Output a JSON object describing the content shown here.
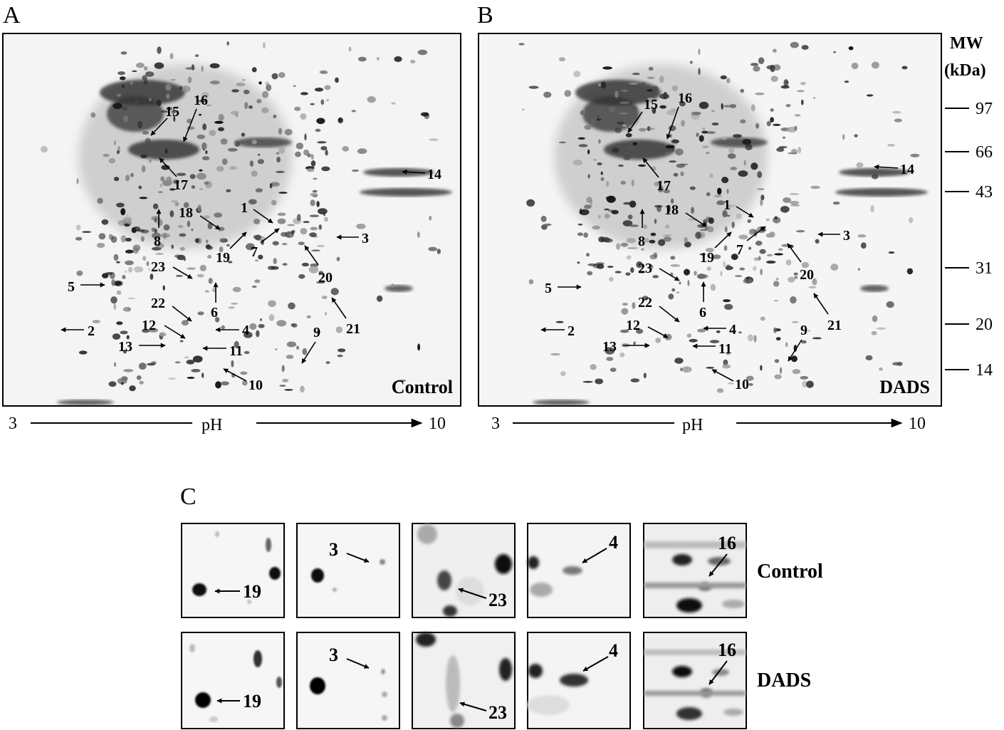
{
  "panels": {
    "A": {
      "letter": "A",
      "condition": "Control"
    },
    "B": {
      "letter": "B",
      "condition": "DADS"
    },
    "C": {
      "letter": "C",
      "row_labels": [
        "Control",
        "DADS"
      ]
    }
  },
  "ph_axis": {
    "start": "3",
    "label": "pH",
    "end": "10"
  },
  "mw_axis": {
    "title_line1": "MW",
    "title_line2": "(kDa)",
    "ticks": [
      "97",
      "66",
      "43",
      "31",
      "20",
      "14"
    ]
  },
  "spot_labels": [
    "1",
    "2",
    "3",
    "4",
    "5",
    "6",
    "7",
    "8",
    "9",
    "10",
    "11",
    "12",
    "13",
    "14",
    "15",
    "16",
    "17",
    "18",
    "19",
    "20",
    "21",
    "22",
    "23"
  ],
  "zoom_labels": [
    "19",
    "3",
    "23",
    "4",
    "16"
  ]
}
